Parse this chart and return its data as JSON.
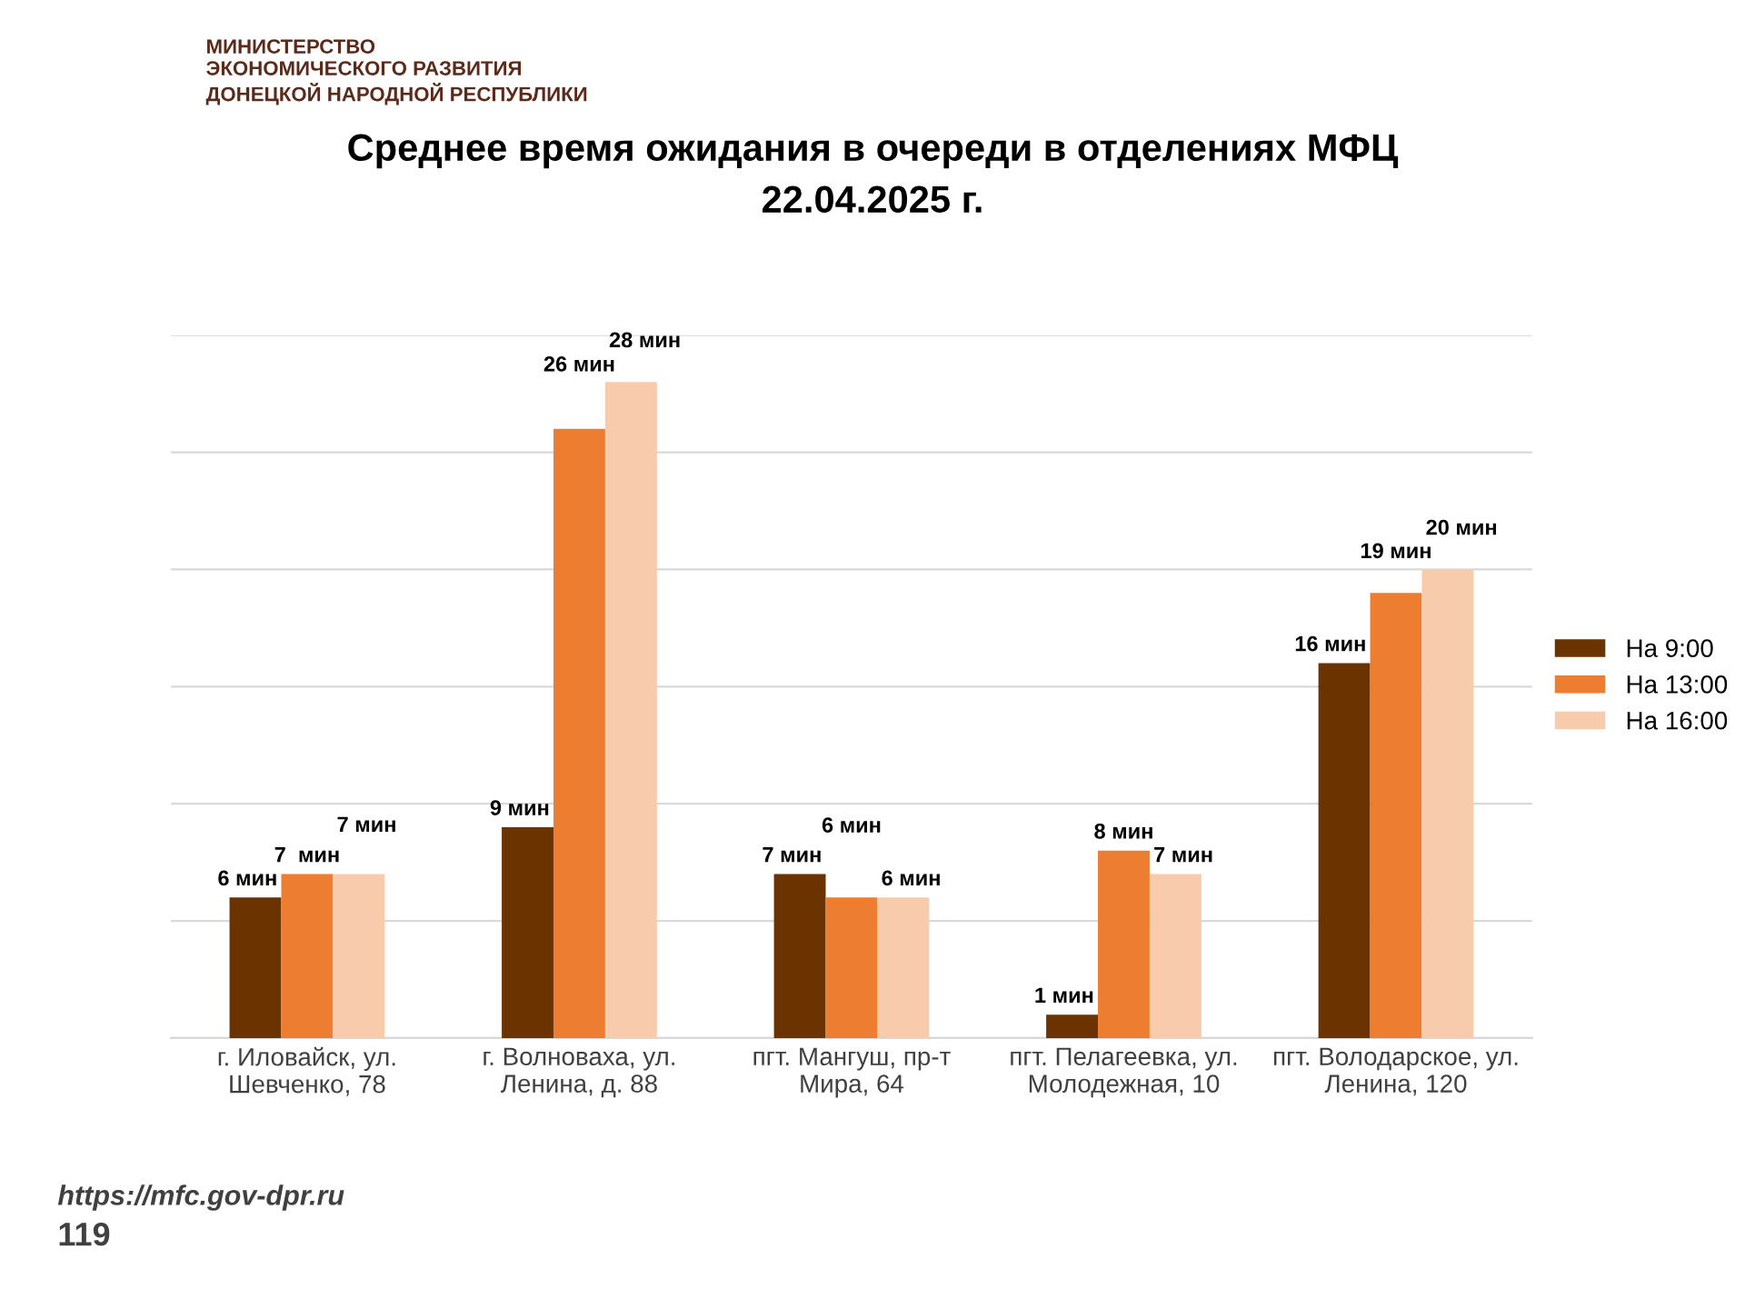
{
  "chart_data": {
    "type": "bar",
    "title": "Среднее время ожидания в очереди в отделениях МФЦ\n22.04.2025 г.",
    "categories": [
      "г. Иловайск, ул.\nШевченко, 78",
      "г. Волноваха, ул.\nЛенина, д. 88",
      "пгт. Мангуш, пр-т\nМира, 64",
      "пгт. Пелагеевка, ул.\nМолодежная, 10",
      "пгт. Володарское, ул.\nЛенина, 120"
    ],
    "series": [
      {
        "name": "На 9:00",
        "color": "#6b3300",
        "values": [
          6,
          9,
          7,
          1,
          16
        ],
        "value_labels": [
          "6 мин",
          "9 мин",
          "7 мин",
          "1 мин",
          "16 мин"
        ]
      },
      {
        "name": "На 13:00",
        "color": "#ed7d31",
        "values": [
          7,
          26,
          6,
          8,
          19
        ],
        "value_labels": [
          "7  мин",
          "26 мин",
          "6 мин",
          "8 мин",
          "19 мин"
        ]
      },
      {
        "name": "На 16:00",
        "color": "#f8cbad",
        "values": [
          7,
          28,
          6,
          7,
          20
        ],
        "value_labels": [
          "7 мин",
          "28 мин",
          "6 мин",
          "7 мин",
          "20 мин"
        ]
      }
    ],
    "ylim": [
      0,
      30
    ],
    "yticks": [
      {
        "value": 0,
        "label": null
      },
      {
        "value": 5,
        "label": null
      },
      {
        "value": 10,
        "label": null
      },
      {
        "value": 15,
        "label": null
      },
      {
        "value": 20,
        "label": null
      },
      {
        "value": 25,
        "label": null
      },
      {
        "value": 30,
        "label": null
      }
    ],
    "tick_labels": "x",
    "grid": "y",
    "legend": "right",
    "annotations": [
      "МИНИСТЕРСТВО\nЭКОНОМИЧЕСКОГО РАЗВИТИЯ\nДОНЕЦКОЙ НАРОДНОЙ РЕСПУБЛИКИ",
      "https://mfc.gov-dpr.ru",
      "119"
    ]
  }
}
